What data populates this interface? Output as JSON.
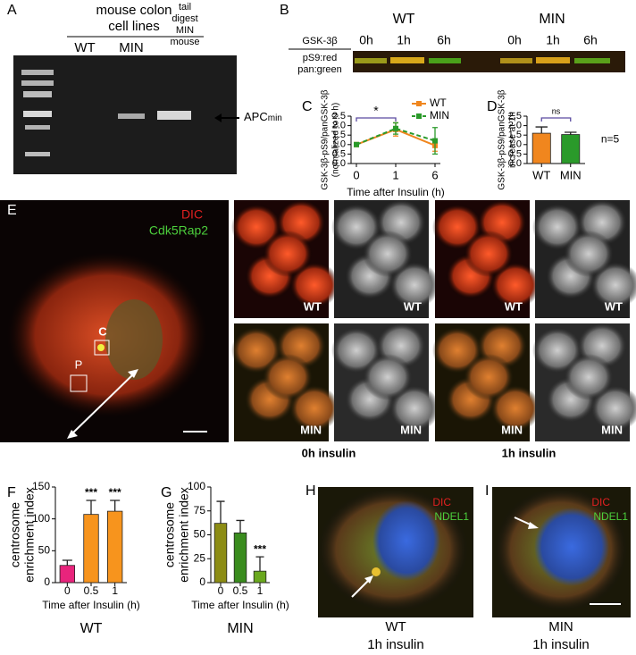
{
  "panels": {
    "A": {
      "label": "A",
      "header": [
        "mouse colon",
        "cell lines"
      ],
      "lanes": [
        "WT",
        "MIN"
      ],
      "tail": [
        "tail",
        "digest",
        "MIN",
        "mouse"
      ],
      "marker": "APC",
      "marker_sub": "min"
    },
    "B": {
      "label": "B",
      "groups": [
        "WT",
        "MIN"
      ],
      "times": [
        "0h",
        "1h",
        "6h",
        "0h",
        "1h",
        "6h"
      ],
      "protein": "GSK-3β",
      "channels": [
        "pS9:red",
        "pan:green"
      ]
    },
    "E": {
      "label": "E",
      "stains": [
        "DIC",
        "Cdk5Rap2"
      ],
      "boxes": [
        "C",
        "P"
      ],
      "image_labels": [
        "WT",
        "WT",
        "WT",
        "WT",
        "MIN",
        "MIN",
        "MIN",
        "MIN"
      ],
      "conditions": [
        "0h insulin",
        "1h insulin"
      ]
    },
    "H": {
      "label": "H",
      "stains": [
        "DIC",
        "NDEL1"
      ],
      "caption": [
        "WT",
        "1h insulin"
      ]
    },
    "I": {
      "label": "I",
      "stains": [
        "DIC",
        "NDEL1"
      ],
      "caption": [
        "MIN",
        "1h insulin"
      ]
    }
  },
  "chart_data": [
    {
      "type": "line",
      "label": "C",
      "ylabel": [
        "GSK-3β-pS9/panGSK-3β",
        "(normalized to 0 h)"
      ],
      "xlabel": "Time after Insulin (h)",
      "categories": [
        "0",
        "1",
        "6"
      ],
      "series": [
        {
          "name": "WT",
          "color": "#f0861e",
          "dash": false,
          "values": [
            1.0,
            1.8,
            0.95
          ],
          "errors": [
            0.05,
            0.35,
            0.3
          ]
        },
        {
          "name": "MIN",
          "color": "#2a9a2a",
          "dash": true,
          "values": [
            1.0,
            1.85,
            1.2
          ],
          "errors": [
            0.05,
            0.3,
            0.7
          ]
        }
      ],
      "ylim": [
        0,
        2.5
      ],
      "yticks": [
        {
          "value": 0,
          "label": "0.0"
        },
        0.5,
        {
          "value": 1,
          "label": "1.0"
        },
        1.5,
        {
          "value": 2,
          "label": "2.0"
        },
        2.5
      ],
      "legend": "upper right",
      "significance": "*"
    },
    {
      "type": "bar",
      "label": "D",
      "ylabel": [
        "GSK-3β-pS9/panGSK-3β",
        "increase at 1h"
      ],
      "categories": [
        "WT",
        "MIN"
      ],
      "colors": [
        "#f0861e",
        "#2a9a2a"
      ],
      "values": [
        1.6,
        1.53
      ],
      "errors": [
        0.33,
        0.12
      ],
      "ylim": [
        0,
        2.5
      ],
      "yticks": [
        {
          "value": 0,
          "label": "0.0"
        },
        0.5,
        {
          "value": 1,
          "label": "1.0"
        },
        1.5,
        {
          "value": 2,
          "label": "2.0"
        },
        2.5
      ],
      "significance": "ns",
      "note": "n=5"
    },
    {
      "type": "bar",
      "label": "F",
      "ylabel": [
        "centrosome",
        "enrichment index"
      ],
      "xlabel": "Time after Insulin (h)",
      "group": "WT",
      "categories": [
        "0",
        "0.5",
        "1"
      ],
      "colors": [
        "#e8247c",
        "#f7941d",
        "#f7941d"
      ],
      "values": [
        27,
        107,
        112
      ],
      "errors": [
        8,
        22,
        17
      ],
      "ylim": [
        0,
        150
      ],
      "yticks": [
        0,
        50,
        100,
        150
      ],
      "significance": [
        null,
        "***",
        "***"
      ]
    },
    {
      "type": "bar",
      "label": "G",
      "ylabel": [
        "centrosome",
        "enrichment index"
      ],
      "xlabel": "Time after Insulin (h)",
      "group": "MIN",
      "categories": [
        "0",
        "0.5",
        "1"
      ],
      "colors": [
        "#8c8c14",
        "#3a8c1e",
        "#6aa81e"
      ],
      "values": [
        62,
        52,
        12
      ],
      "errors": [
        23,
        13,
        15
      ],
      "ylim": [
        0,
        100
      ],
      "yticks": [
        0,
        25,
        50,
        75,
        100
      ],
      "significance": [
        null,
        null,
        "***"
      ]
    }
  ]
}
